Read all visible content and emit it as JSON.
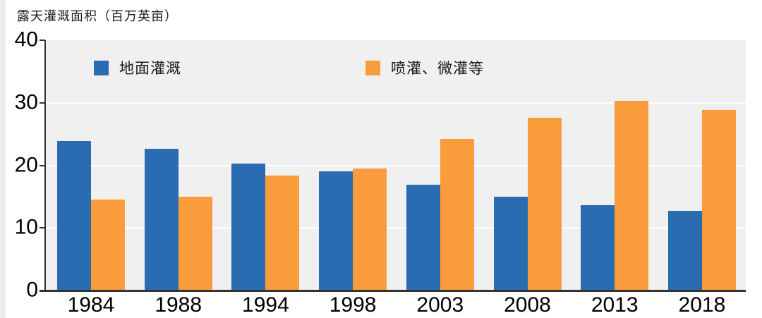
{
  "chart_data": {
    "type": "bar",
    "title": "露天灌溉面积（百万英亩）",
    "categories": [
      "1984",
      "1988",
      "1994",
      "1998",
      "2003",
      "2008",
      "2013",
      "2018"
    ],
    "series": [
      {
        "name": "地面灌溉",
        "color": "#2A6CB1",
        "values": [
          23.9,
          22.7,
          20.3,
          19.1,
          16.9,
          15.0,
          13.6,
          12.7
        ]
      },
      {
        "name": "喷灌、微灌等",
        "color": "#FA9C3C",
        "values": [
          14.5,
          15.0,
          18.4,
          19.5,
          24.2,
          27.6,
          30.3,
          28.8
        ]
      }
    ],
    "xlabel": "",
    "ylabel": "露天灌溉面积（百万英亩）",
    "ylim": [
      0,
      40
    ],
    "yticks": [
      0,
      10,
      20,
      30,
      40
    ],
    "grid": "horizontal",
    "legend_position": "top-inside"
  },
  "colors": {
    "plot_background": "#F0F0F0",
    "gridline": "#FFFFFF",
    "axis": "#333333",
    "text": "#000000",
    "page_edge": "#EDEDED"
  }
}
